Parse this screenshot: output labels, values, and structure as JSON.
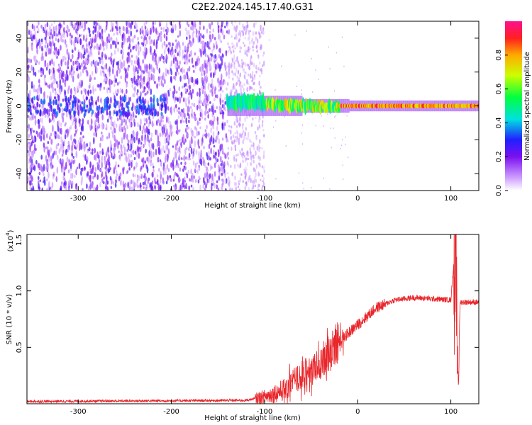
{
  "title": "C2E2.2024.145.17.40.G31",
  "colors": {
    "snr_line": "#e8262b",
    "axis": "#000000",
    "background": "#ffffff"
  },
  "chart_data": [
    {
      "type": "heatmap",
      "xlabel": "Height of straight line (km)",
      "ylabel": "Frequency (Hz)",
      "xlim": [
        -355,
        130
      ],
      "ylim": [
        -50,
        50
      ],
      "x_ticks": [
        "-300",
        "-200",
        "-100",
        "0",
        "100"
      ],
      "y_ticks": [
        "40",
        "20",
        "0",
        "-20",
        "-40"
      ],
      "colorbar": {
        "label": "Normalized spectral amplitude",
        "range": [
          0,
          1
        ],
        "ticks": [
          "0.0",
          "0.2",
          "0.4",
          "0.6",
          "0.8"
        ]
      },
      "description_regions": [
        {
          "x_range": [
            -355,
            -140
          ],
          "pattern": "broadband noise"
        },
        {
          "x_range": [
            -140,
            -100
          ],
          "pattern": "fading noise"
        },
        {
          "x_range": [
            -140,
            130
          ],
          "pattern": "narrow carrier near 0 Hz"
        }
      ]
    },
    {
      "type": "line",
      "xlabel": "Height of straight line (km)",
      "ylabel": "SNR (10 * v/v)",
      "y_scale_label": "(x10",
      "y_scale_exp": "4",
      "y_scale_close": ")",
      "xlim": [
        -355,
        130
      ],
      "ylim": [
        0,
        1.5
      ],
      "x_ticks": [
        "-300",
        "-200",
        "-100",
        "0",
        "100"
      ],
      "y_ticks": [
        "1.5",
        "1.0",
        "0.5"
      ],
      "series": [
        {
          "values_description": "SNR envelope",
          "x": [
            -355,
            -120,
            -100,
            -80,
            -60,
            -40,
            -20,
            0,
            20,
            40,
            60,
            80,
            100,
            105,
            108,
            110,
            130
          ],
          "y": [
            0.02,
            0.03,
            0.06,
            0.12,
            0.25,
            0.35,
            0.55,
            0.7,
            0.85,
            0.92,
            0.94,
            0.93,
            0.92,
            1.45,
            0.3,
            0.9,
            0.9
          ]
        }
      ]
    }
  ]
}
